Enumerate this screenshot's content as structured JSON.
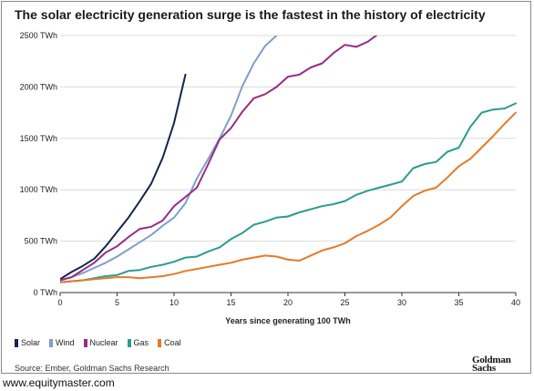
{
  "title": "The solar electricity generation surge is the fastest in the history of electricity",
  "source": "Source: Ember, Goldman Sachs Research",
  "logo": [
    "Goldman",
    "Sachs"
  ],
  "watermark": "www.equitymaster.com",
  "chart_data": {
    "type": "line",
    "title": "The solar electricity generation surge is the fastest in the history of electricity",
    "xlabel": "Years since generating 100 TWh",
    "ylabel": "",
    "xlim": [
      0,
      40
    ],
    "ylim": [
      0,
      2500
    ],
    "xticks": [
      "0",
      "5",
      "10",
      "15",
      "20",
      "25",
      "30",
      "35",
      "40"
    ],
    "yticks": [
      "0 TWh",
      "500 TWh",
      "1000 TWh",
      "1500 TWh",
      "2000 TWh",
      "2500 TWh"
    ],
    "grid": "horizontal",
    "legend_position": "bottom-left",
    "series": [
      {
        "name": "Solar",
        "color": "#14264f",
        "x": [
          0,
          1,
          2,
          3,
          4,
          5,
          6,
          7,
          8,
          9,
          10,
          11
        ],
        "y": [
          130,
          200,
          260,
          330,
          450,
          590,
          730,
          890,
          1060,
          1310,
          1650,
          2120
        ]
      },
      {
        "name": "Wind",
        "color": "#7f9fce",
        "x": [
          0,
          1,
          2,
          3,
          4,
          5,
          6,
          7,
          8,
          9,
          10,
          11,
          12,
          13,
          14,
          15,
          16,
          17,
          18,
          19
        ],
        "y": [
          120,
          150,
          190,
          240,
          290,
          350,
          420,
          490,
          560,
          650,
          730,
          870,
          1110,
          1300,
          1500,
          1720,
          2010,
          2230,
          2400,
          2500
        ]
      },
      {
        "name": "Nuclear",
        "color": "#962d86",
        "x": [
          0,
          1,
          2,
          3,
          4,
          5,
          6,
          7,
          8,
          9,
          10,
          11,
          12,
          13,
          14,
          15,
          16,
          17,
          18,
          19,
          20,
          21,
          22,
          23,
          24,
          25,
          26,
          27,
          28
        ],
        "y": [
          120,
          150,
          220,
          290,
          390,
          450,
          540,
          620,
          640,
          700,
          840,
          930,
          1020,
          1250,
          1490,
          1600,
          1760,
          1890,
          1930,
          2000,
          2100,
          2120,
          2190,
          2230,
          2330,
          2410,
          2390,
          2440,
          2520
        ]
      },
      {
        "name": "Gas",
        "color": "#2a9d8f",
        "x": [
          0,
          1,
          2,
          3,
          4,
          5,
          6,
          7,
          8,
          9,
          10,
          11,
          12,
          13,
          14,
          15,
          16,
          17,
          18,
          19,
          20,
          21,
          22,
          23,
          24,
          25,
          26,
          27,
          28,
          29,
          30,
          31,
          32,
          33,
          34,
          35,
          36,
          37,
          38,
          39,
          40
        ],
        "y": [
          100,
          110,
          120,
          140,
          160,
          170,
          210,
          220,
          250,
          270,
          300,
          340,
          350,
          400,
          440,
          520,
          580,
          660,
          690,
          730,
          740,
          780,
          810,
          840,
          860,
          890,
          950,
          990,
          1020,
          1050,
          1080,
          1210,
          1250,
          1270,
          1370,
          1410,
          1610,
          1750,
          1780,
          1790,
          1840
        ]
      },
      {
        "name": "Coal",
        "color": "#e57a28",
        "x": [
          0,
          1,
          2,
          3,
          4,
          5,
          6,
          7,
          8,
          9,
          10,
          11,
          12,
          13,
          14,
          15,
          16,
          17,
          18,
          19,
          20,
          21,
          22,
          23,
          24,
          25,
          26,
          27,
          28,
          29,
          30,
          31,
          32,
          33,
          34,
          35,
          36,
          37,
          38,
          39,
          40
        ],
        "y": [
          100,
          110,
          120,
          130,
          140,
          150,
          150,
          140,
          150,
          160,
          180,
          210,
          230,
          250,
          270,
          290,
          320,
          340,
          360,
          350,
          320,
          310,
          360,
          410,
          440,
          480,
          550,
          600,
          660,
          730,
          840,
          940,
          990,
          1020,
          1120,
          1230,
          1300,
          1410,
          1520,
          1640,
          1750
        ]
      }
    ]
  }
}
